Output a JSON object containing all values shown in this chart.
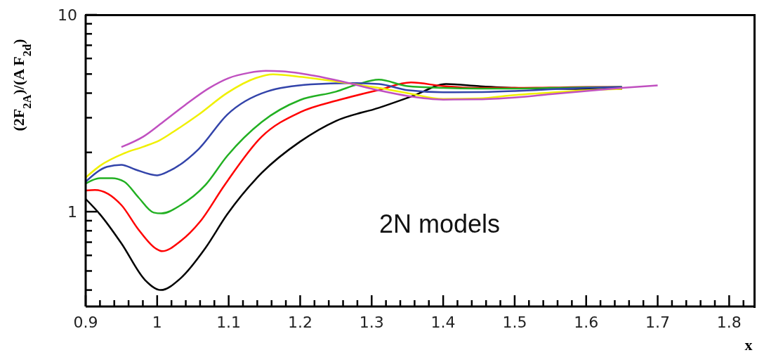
{
  "chart_data": {
    "type": "line",
    "ylabel": "(2F$_{2A}$)/(A F$_{2d}$)",
    "xlabel": "x",
    "log": "y",
    "xlim": [
      0.9,
      1.835
    ],
    "ylim": [
      0.33,
      10
    ],
    "xticks": [
      0.9,
      {
        "value": 0.92,
        "label": null
      },
      {
        "value": 0.94,
        "label": null
      },
      {
        "value": 0.96,
        "label": null
      },
      {
        "value": 0.98,
        "label": null
      },
      {
        "value": 1,
        "label": "1"
      },
      {
        "value": 1.02,
        "label": null
      },
      {
        "value": 1.04,
        "label": null
      },
      {
        "value": 1.06,
        "label": null
      },
      {
        "value": 1.08,
        "label": null
      },
      1.1,
      {
        "value": 1.12,
        "label": null
      },
      {
        "value": 1.14,
        "label": null
      },
      {
        "value": 1.16,
        "label": null
      },
      {
        "value": 1.18,
        "label": null
      },
      1.2,
      {
        "value": 1.22,
        "label": null
      },
      {
        "value": 1.24,
        "label": null
      },
      {
        "value": 1.26,
        "label": null
      },
      {
        "value": 1.28,
        "label": null
      },
      1.3,
      {
        "value": 1.32,
        "label": null
      },
      {
        "value": 1.34,
        "label": null
      },
      {
        "value": 1.36,
        "label": null
      },
      {
        "value": 1.38,
        "label": null
      },
      1.4,
      {
        "value": 1.42,
        "label": null
      },
      {
        "value": 1.44,
        "label": null
      },
      {
        "value": 1.46,
        "label": null
      },
      {
        "value": 1.48,
        "label": null
      },
      1.5,
      {
        "value": 1.52,
        "label": null
      },
      {
        "value": 1.54,
        "label": null
      },
      {
        "value": 1.56,
        "label": null
      },
      {
        "value": 1.58,
        "label": null
      },
      1.6,
      {
        "value": 1.62,
        "label": null
      },
      {
        "value": 1.64,
        "label": null
      },
      {
        "value": 1.66,
        "label": null
      },
      {
        "value": 1.68,
        "label": null
      },
      1.7,
      {
        "value": 1.72,
        "label": null
      },
      {
        "value": 1.74,
        "label": null
      },
      {
        "value": 1.76,
        "label": null
      },
      {
        "value": 1.78,
        "label": null
      },
      1.8,
      {
        "value": 1.82,
        "label": null
      }
    ],
    "yticks": [
      {
        "value": 0.4,
        "label": null
      },
      {
        "value": 0.5,
        "label": null
      },
      {
        "value": 0.6,
        "label": null
      },
      {
        "value": 0.7,
        "label": null
      },
      {
        "value": 0.8,
        "label": null
      },
      {
        "value": 0.9,
        "label": null
      },
      1,
      {
        "value": 2,
        "label": null
      },
      {
        "value": 3,
        "label": null
      },
      {
        "value": 4,
        "label": null
      },
      {
        "value": 5,
        "label": null
      },
      {
        "value": 6,
        "label": null
      },
      {
        "value": 7,
        "label": null
      },
      {
        "value": 8,
        "label": null
      },
      {
        "value": 9,
        "label": null
      },
      10
    ],
    "marker": "none",
    "line_style": "solid",
    "annotations": [
      "2N models"
    ],
    "series": [
      {
        "color": "#000000",
        "x": [
          0.9,
          0.92,
          0.95,
          0.983,
          1.005,
          1.033,
          1.067,
          1.098,
          1.146,
          1.2,
          1.25,
          1.31,
          1.36,
          1.404,
          1.45,
          1.5,
          1.55,
          1.6,
          1.65
        ],
        "values": [
          1.16,
          0.97,
          0.69,
          0.45,
          0.4,
          0.46,
          0.65,
          0.97,
          1.57,
          2.27,
          2.89,
          3.37,
          3.9,
          4.45,
          4.34,
          4.25,
          4.22,
          4.2,
          4.2
        ]
      },
      {
        "color": "#ff0000",
        "x": [
          0.9,
          0.913,
          0.95,
          0.974,
          0.998,
          1.007,
          1.033,
          1.06,
          1.094,
          1.146,
          1.2,
          1.254,
          1.31,
          1.355,
          1.4,
          1.45,
          1.5,
          1.55,
          1.6,
          1.65
        ],
        "values": [
          1.28,
          1.29,
          1.08,
          0.81,
          0.65,
          0.63,
          0.71,
          0.89,
          1.36,
          2.4,
          3.2,
          3.69,
          4.15,
          4.53,
          4.34,
          4.25,
          4.25,
          4.27,
          4.3,
          4.3
        ]
      },
      {
        "color": "#22b022",
        "x": [
          0.9,
          0.92,
          0.937,
          0.954,
          0.974,
          0.995,
          1.006,
          1.033,
          1.067,
          1.098,
          1.146,
          1.2,
          1.25,
          1.28,
          1.31,
          1.35,
          1.4,
          1.45,
          1.5,
          1.55,
          1.6,
          1.65
        ],
        "values": [
          1.39,
          1.48,
          1.48,
          1.42,
          1.18,
          0.99,
          0.98,
          1.08,
          1.36,
          1.92,
          2.85,
          3.69,
          4.07,
          4.43,
          4.68,
          4.34,
          4.25,
          4.22,
          4.22,
          4.25,
          4.28,
          4.3
        ]
      },
      {
        "color": "#3344aa",
        "x": [
          0.9,
          0.93,
          0.95,
          0.969,
          1.0,
          1.017,
          1.058,
          1.098,
          1.153,
          1.215,
          1.27,
          1.31,
          1.35,
          1.4,
          1.45,
          1.5,
          1.55,
          1.6,
          1.65
        ],
        "values": [
          1.42,
          1.69,
          1.73,
          1.64,
          1.53,
          1.61,
          2.08,
          3.11,
          4.07,
          4.43,
          4.5,
          4.45,
          4.14,
          4.04,
          4.05,
          4.1,
          4.18,
          4.25,
          4.3
        ]
      },
      {
        "color": "#f0f000",
        "x": [
          0.9,
          0.92,
          0.954,
          0.981,
          1.003,
          1.023,
          1.058,
          1.098,
          1.138,
          1.162,
          1.203,
          1.254,
          1.31,
          1.35,
          1.4,
          1.45,
          1.5,
          1.55,
          1.6,
          1.65
        ],
        "values": [
          1.49,
          1.71,
          1.98,
          2.14,
          2.3,
          2.55,
          3.11,
          4.01,
          4.77,
          4.98,
          4.83,
          4.56,
          4.25,
          4.0,
          3.74,
          3.76,
          3.91,
          4.02,
          4.13,
          4.2
        ]
      },
      {
        "color": "#c050c0",
        "x": [
          0.95,
          0.981,
          1.008,
          1.039,
          1.073,
          1.1,
          1.128,
          1.152,
          1.176,
          1.22,
          1.261,
          1.31,
          1.35,
          1.4,
          1.45,
          1.5,
          1.55,
          1.6,
          1.65,
          1.7
        ],
        "values": [
          2.13,
          2.41,
          2.85,
          3.48,
          4.25,
          4.77,
          5.07,
          5.19,
          5.16,
          4.9,
          4.56,
          4.13,
          3.87,
          3.71,
          3.72,
          3.8,
          3.95,
          4.1,
          4.25,
          4.38
        ]
      }
    ]
  }
}
